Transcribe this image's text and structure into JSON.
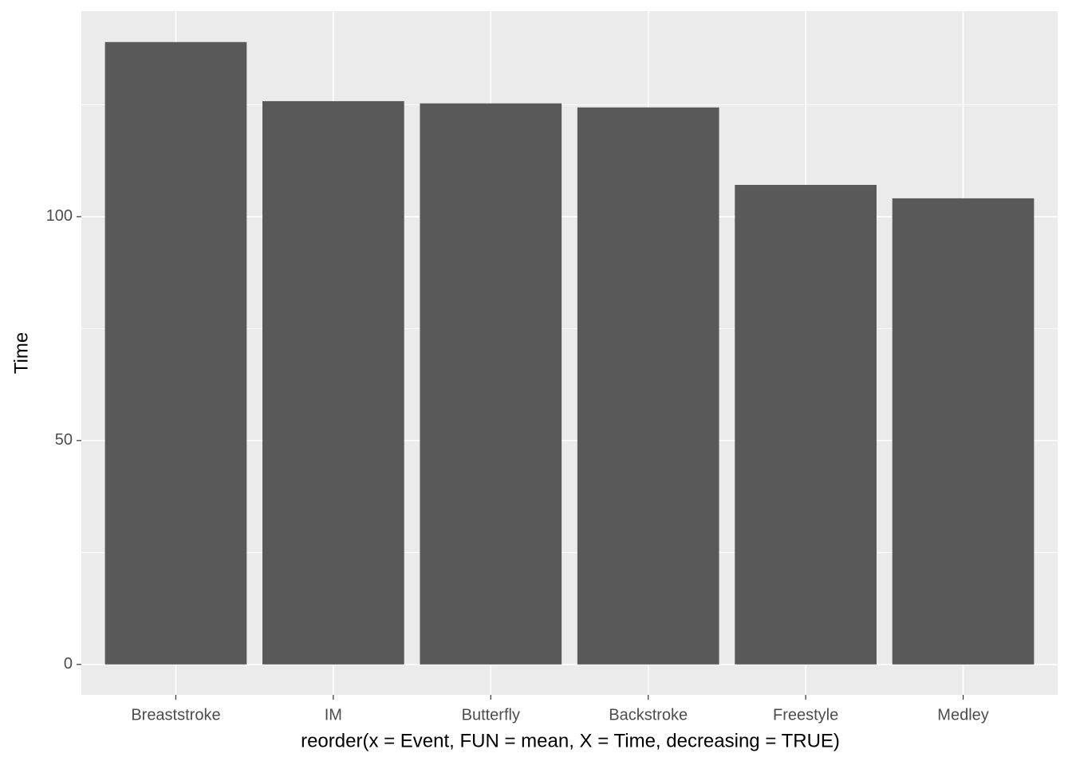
{
  "chart_data": {
    "type": "bar",
    "x_label": "reorder(x = Event, FUN = mean, X = Time, decreasing = TRUE)",
    "y_label": "Time",
    "categories": [
      "Breaststroke",
      "IM",
      "Butterfly",
      "Backstroke",
      "Freestyle",
      "Medley"
    ],
    "values": [
      139.0,
      125.8,
      125.3,
      124.4,
      107.1,
      104.1
    ],
    "color": "#595959",
    "ylim": [
      -6.8,
      145.9
    ],
    "yticks": [
      0,
      50,
      100
    ],
    "y_minor_ticks": [
      25,
      75,
      125
    ],
    "grid": true
  }
}
